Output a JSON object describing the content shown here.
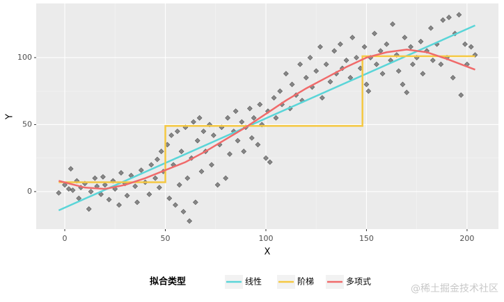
{
  "chart_data": {
    "type": "scatter",
    "xlabel": "X",
    "ylabel": "Y",
    "xlim": [
      -14.2,
      215.6
    ],
    "ylim": [
      -28,
      140.4
    ],
    "xticks": [
      0,
      50,
      100,
      150,
      200
    ],
    "yticks": [
      0,
      50,
      100
    ],
    "grid": true,
    "minor_grid": true,
    "legend_title": "拟合类型",
    "legend_position": "bottom",
    "watermark": "@稀土掘金技术社区",
    "points": {
      "color": "#333333",
      "x": [
        -3,
        0,
        2,
        3,
        4,
        6,
        7,
        8,
        10,
        12,
        13,
        15,
        16,
        18,
        19,
        20,
        22,
        24,
        25,
        27,
        28,
        30,
        31,
        33,
        35,
        36,
        38,
        40,
        42,
        43,
        45,
        46,
        47,
        48,
        49,
        51,
        52,
        53,
        54,
        55,
        56,
        57,
        58,
        59,
        60,
        61,
        62,
        63,
        64,
        65,
        66,
        67,
        68,
        69,
        70,
        72,
        73,
        74,
        76,
        77,
        78,
        80,
        81,
        82,
        84,
        85,
        86,
        88,
        89,
        90,
        92,
        93,
        94,
        96,
        97,
        98,
        100,
        101,
        102,
        104,
        105,
        107,
        108,
        110,
        112,
        113,
        115,
        117,
        118,
        120,
        122,
        123,
        125,
        127,
        128,
        130,
        132,
        134,
        135,
        137,
        138,
        140,
        142,
        143,
        145,
        147,
        149,
        150,
        151,
        152,
        154,
        155,
        157,
        158,
        160,
        162,
        163,
        165,
        166,
        168,
        169,
        170,
        172,
        173,
        175,
        177,
        178,
        180,
        182,
        183,
        185,
        187,
        188,
        190,
        191,
        193,
        194,
        196,
        197,
        199,
        200,
        202,
        204
      ],
      "values": [
        -1,
        5,
        2,
        17,
        1,
        8,
        -5,
        3,
        6,
        -13,
        0,
        10,
        4,
        -2,
        11,
        5,
        -6,
        8,
        2,
        -10,
        14,
        6,
        -3,
        12,
        4,
        -8,
        16,
        7,
        -2,
        20,
        10,
        24,
        3,
        30,
        15,
        35,
        -5,
        42,
        20,
        -10,
        45,
        5,
        30,
        -15,
        48,
        10,
        -22,
        25,
        52,
        -8,
        38,
        55,
        15,
        45,
        30,
        50,
        20,
        42,
        5,
        35,
        48,
        10,
        55,
        28,
        45,
        60,
        38,
        52,
        30,
        48,
        62,
        40,
        55,
        35,
        65,
        50,
        25,
        60,
        22,
        70,
        55,
        75,
        65,
        88,
        62,
        80,
        72,
        95,
        68,
        85,
        100,
        78,
        90,
        108,
        70,
        95,
        82,
        105,
        88,
        110,
        92,
        98,
        85,
        115,
        100,
        92,
        108,
        80,
        75,
        100,
        118,
        95,
        105,
        88,
        110,
        98,
        125,
        102,
        90,
        80,
        115,
        74,
        108,
        95,
        100,
        112,
        88,
        105,
        122,
        98,
        110,
        95,
        128,
        100,
        130,
        85,
        118,
        132,
        72,
        110,
        95,
        108,
        102
      ]
    },
    "series": [
      {
        "name": "线性",
        "color": "#5ad5d8",
        "x": [
          -3,
          204
        ],
        "values": [
          -14,
          124
        ]
      },
      {
        "name": "阶梯",
        "color": "#f5c842",
        "x": [
          -3,
          50,
          50,
          148,
          148,
          204
        ],
        "values": [
          7,
          7,
          49,
          49,
          101,
          101
        ]
      },
      {
        "name": "多项式",
        "color": "#f06a6a",
        "x": [
          -3,
          10,
          20,
          30,
          40,
          50,
          60,
          70,
          80,
          90,
          100,
          110,
          120,
          130,
          140,
          150,
          160,
          170,
          180,
          190,
          204
        ],
        "values": [
          8,
          3,
          2,
          5,
          10,
          16,
          22,
          30,
          39,
          48,
          58,
          68,
          77,
          85,
          93,
          100,
          104,
          106,
          104,
          99,
          91
        ]
      }
    ]
  }
}
